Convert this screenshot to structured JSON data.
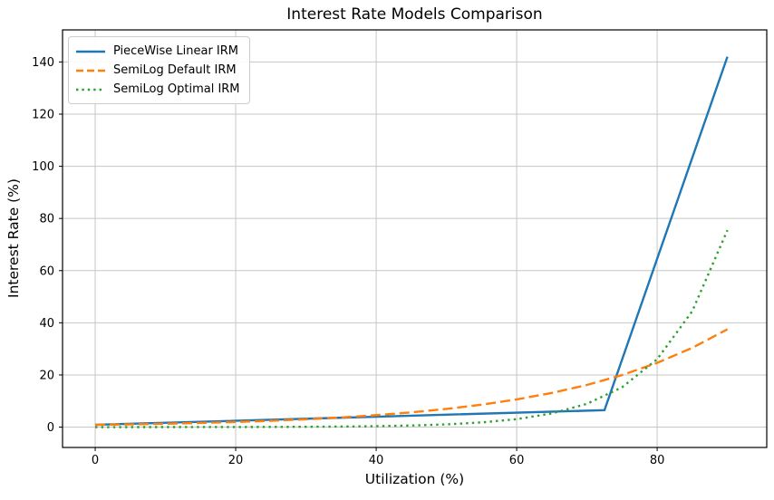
{
  "title": "Interest Rate Models Comparison",
  "colors": {
    "background": "#ffffff",
    "grid": "#c6c6c6",
    "spine": "#000000",
    "text": "#000000",
    "series_blue": "#1f77b4",
    "series_orange": "#ff7f0e",
    "series_green": "#2ca02c"
  },
  "chart_data": {
    "type": "line",
    "title": "Interest Rate Models Comparison",
    "xlabel": "Utilization (%)",
    "ylabel": "Interest Rate (%)",
    "xlim": [
      -4.65,
      95.6
    ],
    "ylim": [
      -7.8,
      152.3
    ],
    "xticks": [
      0,
      20,
      40,
      60,
      80
    ],
    "yticks": [
      0,
      20,
      40,
      60,
      80,
      100,
      120,
      140
    ],
    "grid": true,
    "legend_position": "upper left",
    "series": [
      {
        "name": "PieceWise Linear IRM",
        "color": "#1f77b4",
        "style": "solid",
        "x": [
          0,
          72.5,
          90
        ],
        "y": [
          0.9,
          6.5,
          142
        ]
      },
      {
        "name": "SemiLog Default IRM",
        "color": "#ff7f0e",
        "style": "dashed",
        "x": [
          0,
          5,
          10,
          15,
          20,
          25,
          30,
          35,
          40,
          45,
          50,
          55,
          60,
          65,
          70,
          75,
          80,
          85,
          90
        ],
        "y": [
          0.85,
          1.05,
          1.3,
          1.6,
          1.97,
          2.43,
          3.0,
          3.71,
          4.58,
          5.65,
          6.97,
          8.6,
          10.62,
          13.1,
          16.17,
          19.96,
          24.63,
          30.4,
          37.5
        ]
      },
      {
        "name": "SemiLog Optimal IRM",
        "color": "#2ca02c",
        "style": "dotted",
        "x": [
          0,
          5,
          10,
          15,
          20,
          25,
          30,
          35,
          40,
          45,
          50,
          55,
          60,
          65,
          70,
          75,
          80,
          85,
          90
        ],
        "y": [
          0.005,
          0.009,
          0.015,
          0.025,
          0.042,
          0.073,
          0.124,
          0.211,
          0.361,
          0.616,
          1.052,
          1.796,
          3.066,
          5.234,
          8.935,
          15.254,
          26.041,
          44.457,
          75.5
        ]
      }
    ]
  }
}
